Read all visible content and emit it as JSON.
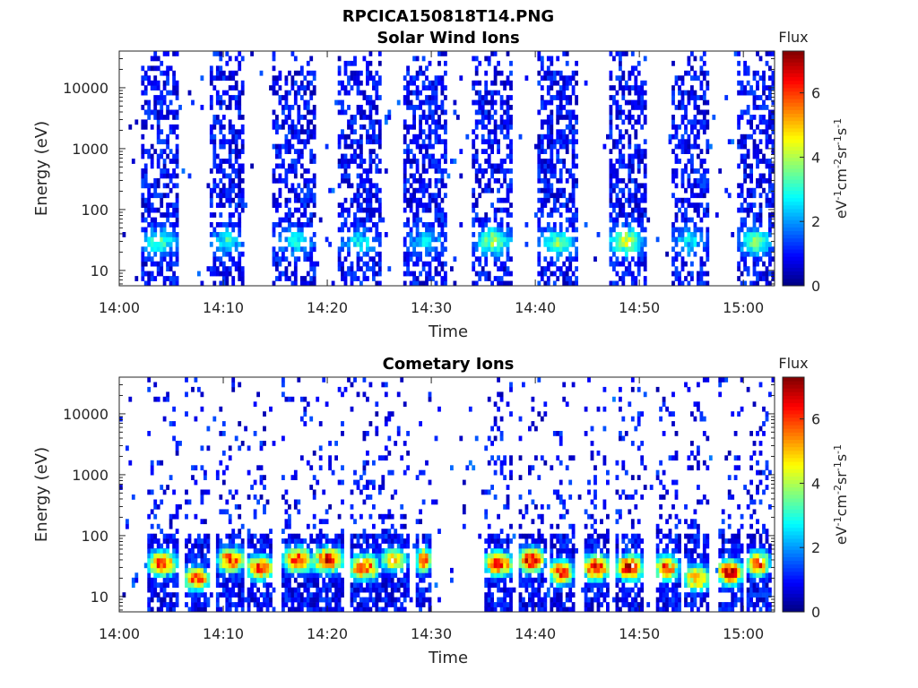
{
  "figure_title": "RPCICA150818T14.PNG",
  "chart_data": [
    {
      "type": "heatmap",
      "title": "Solar Wind Ions",
      "xlabel": "Time",
      "ylabel": "Energy (eV)",
      "x_range": [
        "14:00",
        "15:03"
      ],
      "x_ticks": [
        "14:00",
        "14:10",
        "14:20",
        "14:30",
        "14:40",
        "14:50",
        "15:00"
      ],
      "y_scale": "log",
      "y_range": [
        5.6,
        40000
      ],
      "y_ticks": [
        "10",
        "100",
        "1000",
        "10000"
      ],
      "colorbar": {
        "label": "Flux",
        "unit": "eV-1cm-2sr-1s-1",
        "range": [
          0,
          7.3
        ],
        "ticks": [
          "0",
          "2",
          "4",
          "6"
        ],
        "colormap": "jet"
      },
      "bursts": [
        {
          "center_min": 3.7,
          "width_min": 3.6,
          "peak_energy_ev": 30,
          "max_flux": 3.8
        },
        {
          "center_min": 10.2,
          "width_min": 3.6,
          "peak_energy_ev": 30,
          "max_flux": 3.3
        },
        {
          "center_min": 16.8,
          "width_min": 4.2,
          "peak_energy_ev": 30,
          "max_flux": 3.2
        },
        {
          "center_min": 23.0,
          "width_min": 4.0,
          "peak_energy_ev": 30,
          "max_flux": 3.2
        },
        {
          "center_min": 29.3,
          "width_min": 4.0,
          "peak_energy_ev": 30,
          "max_flux": 3.0
        },
        {
          "center_min": 35.8,
          "width_min": 3.8,
          "peak_energy_ev": 30,
          "max_flux": 4.2
        },
        {
          "center_min": 42.0,
          "width_min": 3.8,
          "peak_energy_ev": 28,
          "max_flux": 4.0
        },
        {
          "center_min": 48.6,
          "width_min": 3.6,
          "peak_energy_ev": 30,
          "max_flux": 4.6
        },
        {
          "center_min": 54.7,
          "width_min": 3.4,
          "peak_energy_ev": 30,
          "max_flux": 3.2
        },
        {
          "center_min": 61.0,
          "width_min": 3.4,
          "peak_energy_ev": 30,
          "max_flux": 4.0
        }
      ]
    },
    {
      "type": "heatmap",
      "title": "Cometary Ions",
      "xlabel": "Time",
      "ylabel": "Energy (eV)",
      "x_range": [
        "14:00",
        "15:03"
      ],
      "x_ticks": [
        "14:00",
        "14:10",
        "14:20",
        "14:30",
        "14:40",
        "14:50",
        "15:00"
      ],
      "y_scale": "log",
      "y_range": [
        5.6,
        40000
      ],
      "y_ticks": [
        "10",
        "100",
        "1000",
        "10000"
      ],
      "colorbar": {
        "label": "Flux",
        "unit": "eV-1cm-2sr-1s-1",
        "range": [
          0,
          7.3
        ],
        "ticks": [
          "0",
          "2",
          "4",
          "6"
        ],
        "colormap": "jet"
      },
      "bursts": [
        {
          "center_min": 4.0,
          "width_min": 2.8,
          "peak_energy_ev": 35,
          "max_flux": 6.6
        },
        {
          "center_min": 7.3,
          "width_min": 2.6,
          "peak_energy_ev": 20,
          "max_flux": 6.2
        },
        {
          "center_min": 10.6,
          "width_min": 2.6,
          "peak_energy_ev": 40,
          "max_flux": 6.6
        },
        {
          "center_min": 13.4,
          "width_min": 2.6,
          "peak_energy_ev": 30,
          "max_flux": 6.6
        },
        {
          "center_min": 17.0,
          "width_min": 2.8,
          "peak_energy_ev": 40,
          "max_flux": 6.8
        },
        {
          "center_min": 19.9,
          "width_min": 3.0,
          "peak_energy_ev": 40,
          "max_flux": 7.0
        },
        {
          "center_min": 23.4,
          "width_min": 2.8,
          "peak_energy_ev": 30,
          "max_flux": 6.6
        },
        {
          "center_min": 26.3,
          "width_min": 2.8,
          "peak_energy_ev": 40,
          "max_flux": 5.2
        },
        {
          "center_min": 29.1,
          "width_min": 1.4,
          "peak_energy_ev": 40,
          "max_flux": 6.6
        },
        {
          "center_min": 36.3,
          "width_min": 2.8,
          "peak_energy_ev": 35,
          "max_flux": 6.8
        },
        {
          "center_min": 39.5,
          "width_min": 2.6,
          "peak_energy_ev": 40,
          "max_flux": 7.0
        },
        {
          "center_min": 42.3,
          "width_min": 2.4,
          "peak_energy_ev": 25,
          "max_flux": 6.6
        },
        {
          "center_min": 45.7,
          "width_min": 2.6,
          "peak_energy_ev": 30,
          "max_flux": 7.2
        },
        {
          "center_min": 48.9,
          "width_min": 2.6,
          "peak_energy_ev": 30,
          "max_flux": 7.2
        },
        {
          "center_min": 52.5,
          "width_min": 2.4,
          "peak_energy_ev": 30,
          "max_flux": 6.4
        },
        {
          "center_min": 55.4,
          "width_min": 2.4,
          "peak_energy_ev": 20,
          "max_flux": 6.2
        },
        {
          "center_min": 58.6,
          "width_min": 2.6,
          "peak_energy_ev": 25,
          "max_flux": 7.2
        },
        {
          "center_min": 61.3,
          "width_min": 2.2,
          "peak_energy_ev": 35,
          "max_flux": 6.6
        }
      ]
    }
  ]
}
